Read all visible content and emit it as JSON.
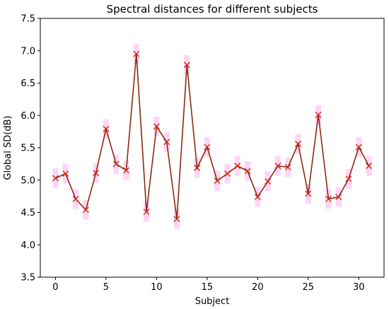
{
  "chart_data": {
    "type": "line",
    "title": "Spectral distances for different subjects",
    "xlabel": "Subject",
    "ylabel": "Global SD(dB)",
    "xlim": [
      -1.5,
      32.5
    ],
    "ylim": [
      3.5,
      7.5
    ],
    "xticks": [
      0,
      5,
      10,
      15,
      20,
      25,
      30
    ],
    "yticks": [
      "3.5",
      "4.0",
      "4.5",
      "5.0",
      "5.5",
      "6.0",
      "6.5",
      "7.0",
      "7.5"
    ],
    "grid": false,
    "line_color": "#8b2a0f",
    "marker_color": "#cc2200",
    "error_color": "#ffb3ee",
    "marker": "x",
    "x": [
      0,
      1,
      2,
      3,
      4,
      5,
      6,
      7,
      8,
      9,
      10,
      11,
      12,
      13,
      14,
      15,
      16,
      17,
      18,
      19,
      20,
      21,
      22,
      23,
      24,
      25,
      26,
      27,
      28,
      29,
      30,
      31
    ],
    "y": [
      5.03,
      5.1,
      4.71,
      4.54,
      5.11,
      5.79,
      5.25,
      5.15,
      6.95,
      4.51,
      5.83,
      5.59,
      4.4,
      6.78,
      5.19,
      5.51,
      4.99,
      5.1,
      5.22,
      5.14,
      4.74,
      4.98,
      5.22,
      5.2,
      5.56,
      4.79,
      6.01,
      4.71,
      4.74,
      5.02,
      5.51,
      5.22
    ]
  }
}
